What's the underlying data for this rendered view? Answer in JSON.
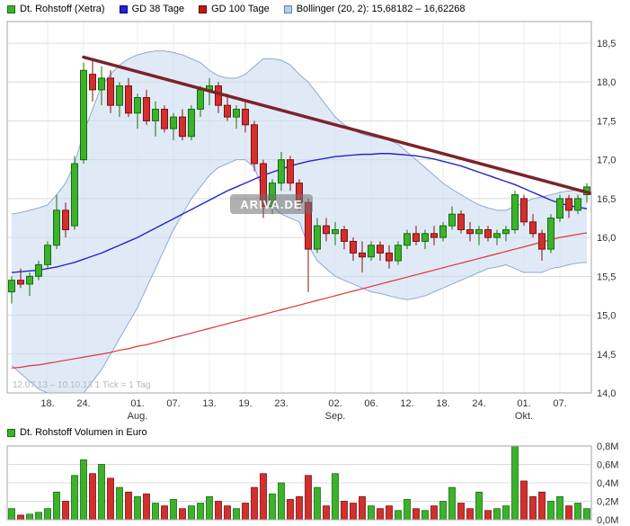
{
  "legend": {
    "items": [
      {
        "label": "Dt. Rohstoff (Xetra)",
        "color": "#3cb22c",
        "border": "#156d0e"
      },
      {
        "label": "GD 38 Tage",
        "color": "#2424c8",
        "border": "#00008b"
      },
      {
        "label": "GD 100 Tage",
        "color": "#c01818",
        "border": "#6b0000"
      },
      {
        "label": "Bollinger (20, 2): 15,68182 – 16,62268",
        "color": "#b9cbe8",
        "border": "#5b7fb8"
      }
    ]
  },
  "volume_legend": {
    "label": "Dt. Rohstoff Volumen in Euro",
    "color": "#3cb22c",
    "border": "#156d0e"
  },
  "watermark": "ARIVA.DE",
  "colors": {
    "up_fill": "#3cb22c",
    "up_border": "#156d0e",
    "down_fill": "#d32f2f",
    "down_border": "#7e1010",
    "gd38": "#2424c8",
    "gd100": "#e03535",
    "band_fill": "#ccdcf1",
    "band_edge": "#90a8cf",
    "trend": "#7c2329",
    "grid_h": "#dcdcdc",
    "grid_v": "#ededed",
    "border": "#a6a6a6",
    "axis_text": "#333333",
    "footer_text": "#b8b8b8",
    "watermark_bg": "#707070",
    "watermark_text": "#ffffff"
  },
  "chart_data": [
    {
      "type": "candlestick",
      "title": "Dt. Rohstoff (Xetra)",
      "period_note": "12.07.13 – 10.10.13   1 Tick = 1 Tag",
      "ylim": [
        14.0,
        18.5
      ],
      "grid": true,
      "axis_side": "right",
      "y_ticks": [
        {
          "value": 18.5,
          "label": "18,5"
        },
        {
          "value": 18.0,
          "label": "18,0"
        },
        {
          "value": 17.5,
          "label": "17,5"
        },
        {
          "value": 17.0,
          "label": "17,0"
        },
        {
          "value": 16.5,
          "label": "16,5"
        },
        {
          "value": 16.0,
          "label": "16,0"
        },
        {
          "value": 15.5,
          "label": "15,5"
        },
        {
          "value": 15.0,
          "label": "15,0"
        },
        {
          "value": 14.5,
          "label": "14,5"
        },
        {
          "value": 14.0,
          "label": "14,0"
        }
      ],
      "x_ticks": [
        {
          "index": 4,
          "label": "18."
        },
        {
          "index": 8,
          "label": "24."
        },
        {
          "index": 14,
          "label": "01."
        },
        {
          "index": 18,
          "label": "07."
        },
        {
          "index": 22,
          "label": "13."
        },
        {
          "index": 26,
          "label": "19."
        },
        {
          "index": 30,
          "label": "23."
        },
        {
          "index": 36,
          "label": "02."
        },
        {
          "index": 40,
          "label": "06."
        },
        {
          "index": 44,
          "label": "12."
        },
        {
          "index": 48,
          "label": "18."
        },
        {
          "index": 52,
          "label": "24."
        },
        {
          "index": 57,
          "label": "01."
        },
        {
          "index": 61,
          "label": "07."
        }
      ],
      "month_labels": [
        {
          "index": 14,
          "label": "Aug."
        },
        {
          "index": 36,
          "label": "Sep."
        },
        {
          "index": 57,
          "label": "Okt."
        }
      ],
      "candles": [
        [
          15.3,
          15.5,
          15.15,
          15.45
        ],
        [
          15.45,
          15.6,
          15.35,
          15.4
        ],
        [
          15.4,
          15.55,
          15.25,
          15.5
        ],
        [
          15.5,
          15.7,
          15.45,
          15.65
        ],
        [
          15.65,
          15.95,
          15.6,
          15.9
        ],
        [
          15.9,
          16.55,
          15.85,
          16.35
        ],
        [
          16.35,
          16.45,
          16.0,
          16.1
        ],
        [
          16.15,
          17.05,
          16.1,
          16.95
        ],
        [
          17.0,
          18.25,
          16.95,
          18.15
        ],
        [
          18.1,
          18.3,
          17.75,
          17.9
        ],
        [
          17.9,
          18.2,
          17.7,
          18.05
        ],
        [
          18.05,
          18.15,
          17.6,
          17.7
        ],
        [
          17.7,
          18.0,
          17.55,
          17.95
        ],
        [
          17.95,
          18.05,
          17.55,
          17.6
        ],
        [
          17.6,
          17.85,
          17.4,
          17.8
        ],
        [
          17.8,
          17.9,
          17.45,
          17.5
        ],
        [
          17.5,
          17.75,
          17.3,
          17.65
        ],
        [
          17.65,
          17.7,
          17.35,
          17.4
        ],
        [
          17.4,
          17.6,
          17.25,
          17.55
        ],
        [
          17.55,
          17.65,
          17.25,
          17.3
        ],
        [
          17.3,
          17.7,
          17.25,
          17.65
        ],
        [
          17.65,
          17.95,
          17.55,
          17.9
        ],
        [
          17.9,
          18.05,
          17.7,
          17.95
        ],
        [
          17.95,
          18.0,
          17.6,
          17.7
        ],
        [
          17.7,
          17.85,
          17.5,
          17.55
        ],
        [
          17.55,
          17.7,
          17.4,
          17.65
        ],
        [
          17.65,
          17.75,
          17.35,
          17.45
        ],
        [
          17.45,
          17.5,
          16.85,
          16.95
        ],
        [
          16.95,
          17.0,
          16.25,
          16.4
        ],
        [
          16.4,
          16.75,
          16.3,
          16.7
        ],
        [
          16.7,
          17.1,
          16.6,
          17.0
        ],
        [
          17.0,
          17.05,
          16.6,
          16.7
        ],
        [
          16.7,
          16.75,
          16.35,
          16.45
        ],
        [
          16.45,
          16.5,
          15.3,
          15.85
        ],
        [
          15.85,
          16.25,
          15.8,
          16.15
        ],
        [
          16.15,
          16.25,
          15.95,
          16.05
        ],
        [
          16.05,
          16.2,
          15.9,
          16.1
        ],
        [
          16.1,
          16.15,
          15.85,
          15.95
        ],
        [
          15.95,
          16.0,
          15.7,
          15.8
        ],
        [
          15.8,
          15.95,
          15.55,
          15.75
        ],
        [
          15.75,
          15.95,
          15.7,
          15.9
        ],
        [
          15.9,
          15.95,
          15.7,
          15.8
        ],
        [
          15.8,
          15.9,
          15.6,
          15.7
        ],
        [
          15.7,
          15.95,
          15.65,
          15.9
        ],
        [
          15.9,
          16.1,
          15.85,
          16.05
        ],
        [
          16.05,
          16.15,
          15.9,
          15.95
        ],
        [
          15.95,
          16.1,
          15.85,
          16.05
        ],
        [
          16.05,
          16.15,
          15.9,
          16.0
        ],
        [
          16.0,
          16.2,
          15.95,
          16.15
        ],
        [
          16.15,
          16.4,
          16.1,
          16.3
        ],
        [
          16.3,
          16.35,
          16.05,
          16.1
        ],
        [
          16.1,
          16.2,
          15.95,
          16.05
        ],
        [
          16.05,
          16.15,
          15.9,
          16.1
        ],
        [
          16.1,
          16.15,
          15.95,
          16.0
        ],
        [
          16.0,
          16.1,
          15.9,
          16.05
        ],
        [
          16.05,
          16.15,
          15.95,
          16.1
        ],
        [
          16.1,
          16.6,
          16.05,
          16.55
        ],
        [
          16.5,
          16.55,
          16.15,
          16.2
        ],
        [
          16.2,
          16.3,
          16.0,
          16.05
        ],
        [
          16.05,
          16.1,
          15.7,
          15.85
        ],
        [
          15.85,
          16.3,
          15.8,
          16.25
        ],
        [
          16.25,
          16.55,
          16.2,
          16.5
        ],
        [
          16.5,
          16.55,
          16.25,
          16.35
        ],
        [
          16.35,
          16.55,
          16.3,
          16.5
        ],
        [
          16.55,
          16.7,
          16.45,
          16.65
        ]
      ],
      "bollinger": {
        "upper": [
          16.3,
          16.32,
          16.35,
          16.38,
          16.42,
          16.55,
          16.7,
          16.95,
          17.35,
          17.65,
          17.95,
          18.1,
          18.22,
          18.3,
          18.35,
          18.38,
          18.4,
          18.4,
          18.38,
          18.35,
          18.3,
          18.25,
          18.15,
          18.08,
          18.05,
          18.05,
          18.1,
          18.2,
          18.3,
          18.3,
          18.28,
          18.22,
          18.1,
          18.0,
          17.85,
          17.7,
          17.55,
          17.45,
          17.38,
          17.33,
          17.3,
          17.28,
          17.25,
          17.2,
          17.1,
          17.0,
          16.9,
          16.8,
          16.7,
          16.62,
          16.55,
          16.48,
          16.42,
          16.38,
          16.35,
          16.35,
          16.4,
          16.45,
          16.5,
          16.52,
          16.55,
          16.58,
          16.6,
          16.61,
          16.62
        ],
        "lower": [
          14.35,
          14.25,
          14.15,
          14.05,
          14.0,
          13.95,
          13.95,
          13.95,
          14.0,
          14.15,
          14.3,
          14.5,
          14.7,
          14.9,
          15.1,
          15.35,
          15.6,
          15.85,
          16.1,
          16.3,
          16.5,
          16.65,
          16.8,
          16.9,
          16.95,
          17.0,
          17.0,
          16.9,
          16.6,
          16.4,
          16.3,
          16.25,
          16.2,
          15.9,
          15.7,
          15.6,
          15.5,
          15.45,
          15.4,
          15.35,
          15.3,
          15.28,
          15.25,
          15.22,
          15.2,
          15.22,
          15.25,
          15.3,
          15.35,
          15.4,
          15.45,
          15.5,
          15.55,
          15.6,
          15.62,
          15.65,
          15.6,
          15.55,
          15.55,
          15.55,
          15.6,
          15.62,
          15.65,
          15.67,
          15.68
        ]
      },
      "gd38": [
        15.55,
        15.56,
        15.57,
        15.58,
        15.6,
        15.62,
        15.65,
        15.68,
        15.72,
        15.76,
        15.8,
        15.85,
        15.9,
        15.95,
        16.0,
        16.06,
        16.12,
        16.18,
        16.24,
        16.3,
        16.36,
        16.42,
        16.48,
        16.54,
        16.6,
        16.65,
        16.7,
        16.75,
        16.8,
        16.84,
        16.88,
        16.92,
        16.95,
        16.98,
        17.0,
        17.02,
        17.04,
        17.05,
        17.06,
        17.07,
        17.07,
        17.08,
        17.08,
        17.07,
        17.06,
        17.05,
        17.03,
        17.01,
        16.98,
        16.95,
        16.92,
        16.88,
        16.84,
        16.8,
        16.76,
        16.72,
        16.68,
        16.63,
        16.58,
        16.53,
        16.48,
        16.44,
        16.41,
        16.39,
        16.37
      ],
      "gd100": [
        14.32,
        14.33,
        14.35,
        14.36,
        14.38,
        14.4,
        14.42,
        14.44,
        14.46,
        14.48,
        14.5,
        14.52,
        14.55,
        14.57,
        14.6,
        14.62,
        14.65,
        14.68,
        14.71,
        14.74,
        14.77,
        14.8,
        14.83,
        14.86,
        14.89,
        14.92,
        14.95,
        14.98,
        15.01,
        15.04,
        15.07,
        15.1,
        15.13,
        15.16,
        15.19,
        15.22,
        15.25,
        15.28,
        15.31,
        15.34,
        15.37,
        15.4,
        15.43,
        15.46,
        15.49,
        15.52,
        15.55,
        15.58,
        15.61,
        15.64,
        15.67,
        15.7,
        15.73,
        15.76,
        15.79,
        15.82,
        15.85,
        15.88,
        15.91,
        15.94,
        15.97,
        16.0,
        16.02,
        16.04,
        16.06
      ],
      "trendline": {
        "from_index": 8,
        "from_price": 18.32,
        "to_index": 65,
        "to_price": 16.55
      }
    },
    {
      "type": "bar",
      "title": "Dt. Rohstoff Volumen in Euro",
      "ylim": [
        0,
        0.8
      ],
      "y_ticks": [
        {
          "value": 0.8,
          "label": "0,8M"
        },
        {
          "value": 0.6,
          "label": "0,6M"
        },
        {
          "value": 0.4,
          "label": "0,4M"
        },
        {
          "value": 0.2,
          "label": "0,2M"
        },
        {
          "value": 0.0,
          "label": "0,0M"
        }
      ],
      "values": [
        0.12,
        0.05,
        0.06,
        0.08,
        0.12,
        0.3,
        0.2,
        0.48,
        0.65,
        0.5,
        0.6,
        0.45,
        0.35,
        0.3,
        0.25,
        0.28,
        0.18,
        0.15,
        0.22,
        0.12,
        0.15,
        0.18,
        0.25,
        0.2,
        0.15,
        0.12,
        0.18,
        0.35,
        0.5,
        0.28,
        0.4,
        0.22,
        0.25,
        0.48,
        0.35,
        0.15,
        0.5,
        0.2,
        0.18,
        0.25,
        0.15,
        0.12,
        0.15,
        0.1,
        0.22,
        0.12,
        0.1,
        0.15,
        0.2,
        0.35,
        0.18,
        0.12,
        0.3,
        0.1,
        0.12,
        0.15,
        0.8,
        0.42,
        0.25,
        0.3,
        0.2,
        0.25,
        0.15,
        0.18,
        0.12
      ]
    }
  ]
}
